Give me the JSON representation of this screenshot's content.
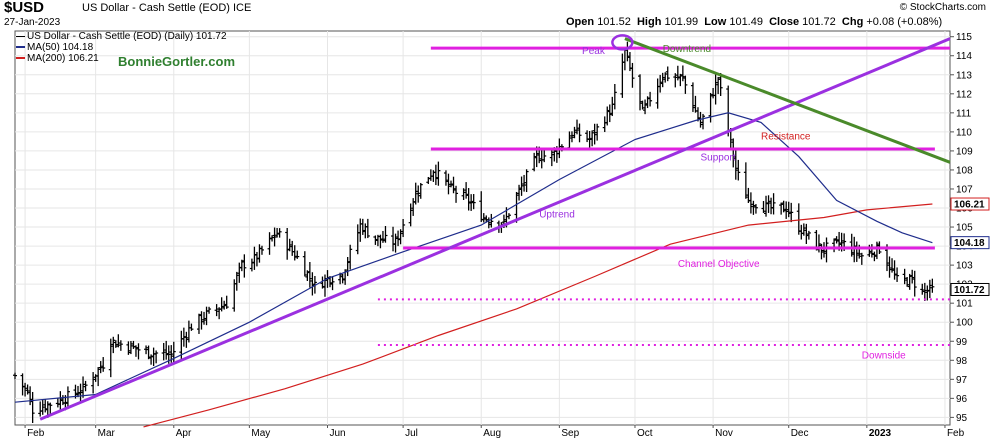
{
  "header": {
    "symbol": "$USD",
    "name": "US Dollar - Cash Settle (EOD) ICE",
    "date": "27-Jan-2023",
    "website": "© StockCharts.com",
    "open_label": "Open",
    "open": "101.52",
    "high_label": "High",
    "high": "101.99",
    "low_label": "Low",
    "low": "101.49",
    "close_label": "Close",
    "close": "101.72",
    "chg_label": "Chg",
    "chg": "+0.08 (+0.08%)"
  },
  "legend": {
    "main": "US Dollar - Cash Settle (EOD) (Daily) 101.72",
    "ma50": "MA(50) 104.18",
    "ma200": "MA(200) 106.21",
    "brand": "BonnieGortler.com"
  },
  "colors": {
    "price": "#000000",
    "ma50": "#1f2d8c",
    "ma200": "#d21f1f",
    "magenta": "#e020e0",
    "purple": "#9b30e0",
    "green": "#4a8a2a",
    "brand": "#2f7f2f",
    "grid": "#e6e6e6"
  },
  "chart_data": {
    "type": "line",
    "subtype": "ohlc",
    "y_axis": {
      "min": 94.6,
      "max": 115.3,
      "ticks": [
        95,
        96,
        97,
        98,
        99,
        100,
        101,
        102,
        103,
        104,
        105,
        106,
        107,
        108,
        109,
        110,
        111,
        112,
        113,
        114,
        115
      ],
      "position": "right"
    },
    "x_axis": {
      "ticks": [
        "Feb",
        "Mar",
        "Apr",
        "May",
        "Jun",
        "Jul",
        "Aug",
        "Sep",
        "Oct",
        "Nov",
        "Dec",
        "2023",
        "Feb"
      ],
      "start": "2022-01-28",
      "end": "2023-02-03"
    },
    "grid": true,
    "price_path": [
      [
        "2022-01-28",
        97.2
      ],
      [
        "2022-02-02",
        96.3
      ],
      [
        "2022-02-04",
        95.4
      ],
      [
        "2022-02-15",
        95.9
      ],
      [
        "2022-02-24",
        96.5
      ],
      [
        "2022-03-04",
        97.8
      ],
      [
        "2022-03-07",
        99.0
      ],
      [
        "2022-03-15",
        98.7
      ],
      [
        "2022-03-22",
        98.4
      ],
      [
        "2022-03-31",
        98.3
      ],
      [
        "2022-04-08",
        99.8
      ],
      [
        "2022-04-14",
        100.4
      ],
      [
        "2022-04-22",
        101.0
      ],
      [
        "2022-04-28",
        103.0
      ],
      [
        "2022-05-03",
        103.3
      ],
      [
        "2022-05-12",
        104.7
      ],
      [
        "2022-05-20",
        103.4
      ],
      [
        "2022-05-27",
        101.9
      ],
      [
        "2022-06-01",
        102.3
      ],
      [
        "2022-06-07",
        102.5
      ],
      [
        "2022-06-14",
        105.1
      ],
      [
        "2022-06-20",
        104.4
      ],
      [
        "2022-06-28",
        104.2
      ],
      [
        "2022-07-06",
        106.8
      ],
      [
        "2022-07-13",
        108.0
      ],
      [
        "2022-07-20",
        107.0
      ],
      [
        "2022-07-27",
        106.4
      ],
      [
        "2022-08-02",
        105.5
      ],
      [
        "2022-08-10",
        105.2
      ],
      [
        "2022-08-15",
        106.6
      ],
      [
        "2022-08-23",
        108.7
      ],
      [
        "2022-08-29",
        108.8
      ],
      [
        "2022-09-07",
        110.0
      ],
      [
        "2022-09-13",
        109.6
      ],
      [
        "2022-09-22",
        111.3
      ],
      [
        "2022-09-27",
        114.2
      ],
      [
        "2022-10-04",
        111.0
      ],
      [
        "2022-10-12",
        113.0
      ],
      [
        "2022-10-20",
        112.8
      ],
      [
        "2022-10-27",
        110.4
      ],
      [
        "2022-11-03",
        112.8
      ],
      [
        "2022-11-10",
        108.0
      ],
      [
        "2022-11-15",
        106.4
      ],
      [
        "2022-11-23",
        106.0
      ],
      [
        "2022-11-30",
        106.0
      ],
      [
        "2022-12-05",
        105.0
      ],
      [
        "2022-12-14",
        103.8
      ],
      [
        "2022-12-22",
        104.2
      ],
      [
        "2022-12-30",
        103.5
      ],
      [
        "2023-01-06",
        103.9
      ],
      [
        "2023-01-13",
        102.2
      ],
      [
        "2023-01-19",
        102.2
      ],
      [
        "2023-01-23",
        101.6
      ],
      [
        "2023-01-27",
        101.7
      ]
    ],
    "ma50": [
      [
        "2022-01-28",
        95.8
      ],
      [
        "2022-03-01",
        96.2
      ],
      [
        "2022-04-01",
        98.1
      ],
      [
        "2022-05-01",
        100.0
      ],
      [
        "2022-06-01",
        102.3
      ],
      [
        "2022-07-01",
        103.7
      ],
      [
        "2022-08-01",
        105.1
      ],
      [
        "2022-09-01",
        107.5
      ],
      [
        "2022-10-01",
        109.6
      ],
      [
        "2022-10-25",
        110.6
      ],
      [
        "2022-11-07",
        111.0
      ],
      [
        "2022-11-20",
        110.5
      ],
      [
        "2022-12-05",
        108.7
      ],
      [
        "2022-12-20",
        106.4
      ],
      [
        "2023-01-05",
        105.3
      ],
      [
        "2023-01-15",
        104.7
      ],
      [
        "2023-01-27",
        104.18
      ]
    ],
    "ma200": [
      [
        "2022-03-20",
        94.5
      ],
      [
        "2022-04-15",
        95.4
      ],
      [
        "2022-05-15",
        96.5
      ],
      [
        "2022-06-15",
        97.8
      ],
      [
        "2022-07-15",
        99.3
      ],
      [
        "2022-08-15",
        100.7
      ],
      [
        "2022-09-15",
        102.4
      ],
      [
        "2022-10-15",
        104.1
      ],
      [
        "2022-11-15",
        105.1
      ],
      [
        "2022-12-15",
        105.5
      ],
      [
        "2023-01-01",
        105.9
      ],
      [
        "2023-01-27",
        106.21
      ]
    ],
    "overlays": {
      "trendlines": [
        {
          "from": [
            "2022-02-07",
            94.9
          ],
          "to": [
            "2023-02-03",
            114.9
          ],
          "color": "purple",
          "width": 3
        },
        {
          "from": [
            "2022-09-27",
            114.9
          ],
          "to": [
            "2023-02-03",
            108.4
          ],
          "color": "green",
          "width": 3
        }
      ],
      "hlines": [
        {
          "from": "2022-07-12",
          "to": "2023-02-03",
          "y": 114.4,
          "color": "magenta",
          "width": 3,
          "style": "solid"
        },
        {
          "from": "2022-07-12",
          "to": "2023-01-28",
          "y": 109.1,
          "color": "magenta",
          "width": 3,
          "style": "solid"
        },
        {
          "from": "2022-07-01",
          "to": "2023-01-28",
          "y": 103.9,
          "color": "magenta",
          "width": 3,
          "style": "solid"
        },
        {
          "from": "2022-06-21",
          "to": "2023-02-03",
          "y": 101.2,
          "color": "magenta",
          "width": 2,
          "style": "dotted"
        },
        {
          "from": "2022-06-21",
          "to": "2023-02-03",
          "y": 98.8,
          "color": "magenta",
          "width": 2,
          "style": "dotted"
        }
      ],
      "circle": {
        "date": "2022-09-26",
        "y": 114.7
      },
      "labels": [
        {
          "text": "Peak",
          "date": "2022-09-10",
          "y": 114.1,
          "color": "purple"
        },
        {
          "text": "Downtrend",
          "date": "2022-10-12",
          "y": 114.2,
          "color": "green"
        },
        {
          "text": "Resistance",
          "date": "2022-11-20",
          "y": 109.6,
          "color": "red"
        },
        {
          "text": "Support",
          "date": "2022-10-27",
          "y": 108.5,
          "color": "purple"
        },
        {
          "text": "Uptrend",
          "date": "2022-08-24",
          "y": 105.5,
          "color": "purple"
        },
        {
          "text": "Channel Objective",
          "date": "2022-10-18",
          "y": 102.9,
          "color": "magenta"
        },
        {
          "text": "Downside",
          "date": "2022-12-30",
          "y": 98.1,
          "color": "magenta"
        }
      ]
    },
    "price_badges": [
      {
        "value": "106.21",
        "y": 106.21,
        "color": "ma200"
      },
      {
        "value": "104.18",
        "y": 104.18,
        "color": "ma50"
      },
      {
        "value": "101.72",
        "y": 101.72,
        "color": "price"
      }
    ]
  }
}
